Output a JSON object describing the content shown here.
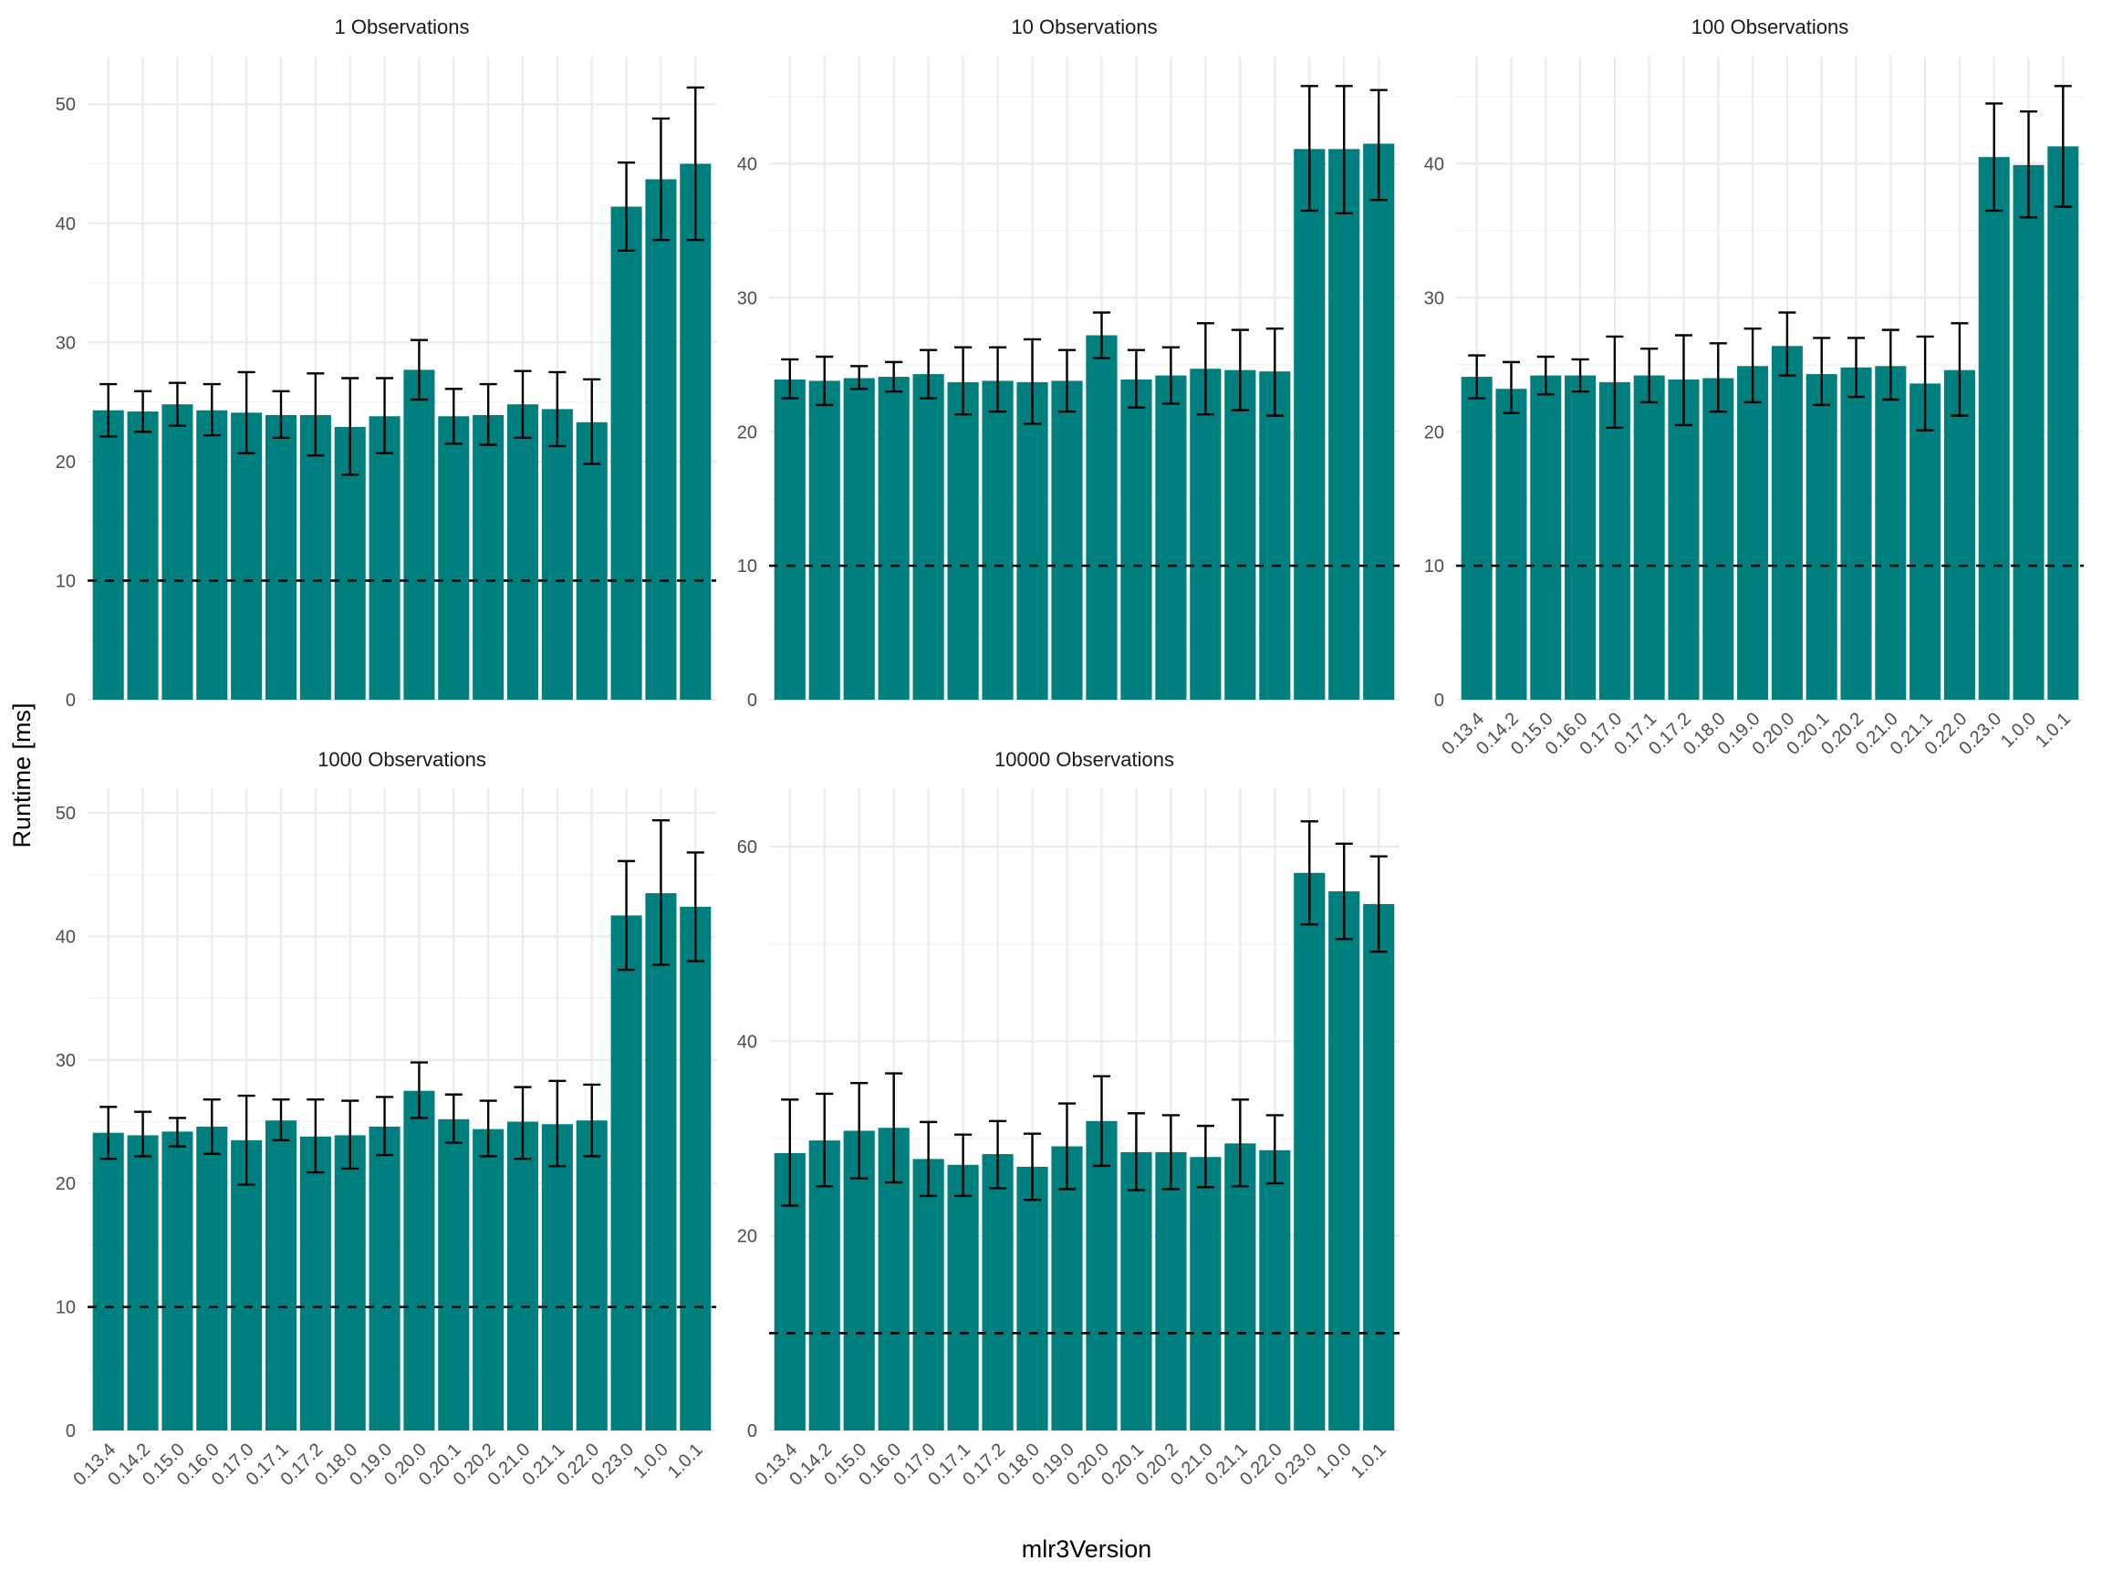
{
  "axis": {
    "xlabel": "mlr3Version",
    "ylabel": "Runtime [ms]"
  },
  "style": {
    "bar_color": "#007f7f",
    "grid_major_color": "#ebebeb",
    "grid_minor_color": "#f5f5f5",
    "error_bar_color": "#000000",
    "reference_line_color": "#000000",
    "reference_line_style": "dashed"
  },
  "chart_data": [
    {
      "type": "bar",
      "title": "1 Observations",
      "categories": [
        "0.13.4",
        "0.14.2",
        "0.15.0",
        "0.16.0",
        "0.17.0",
        "0.17.1",
        "0.17.2",
        "0.18.0",
        "0.19.0",
        "0.20.0",
        "0.20.1",
        "0.20.2",
        "0.21.0",
        "0.21.1",
        "0.22.0",
        "0.23.0",
        "1.0.0",
        "1.0.1"
      ],
      "values": [
        24.3,
        24.2,
        24.8,
        24.3,
        24.1,
        23.9,
        23.9,
        22.9,
        23.8,
        27.7,
        23.8,
        23.9,
        24.8,
        24.4,
        23.3,
        41.4,
        43.7,
        45.0
      ],
      "err_low": [
        22.1,
        22.5,
        23.0,
        22.2,
        20.7,
        22.0,
        20.5,
        18.9,
        20.7,
        25.2,
        21.5,
        21.4,
        22.0,
        21.3,
        19.8,
        37.7,
        38.6,
        38.6
      ],
      "err_high": [
        26.5,
        25.9,
        26.6,
        26.5,
        27.5,
        25.9,
        27.4,
        27.0,
        27.0,
        30.2,
        26.1,
        26.5,
        27.6,
        27.5,
        26.9,
        45.1,
        48.8,
        51.4
      ],
      "reference_line": 10,
      "ylim": [
        0,
        54
      ],
      "yticks": [
        0,
        10,
        20,
        30,
        40,
        50
      ],
      "show_x_ticks": false
    },
    {
      "type": "bar",
      "title": "10 Observations",
      "categories": [
        "0.13.4",
        "0.14.2",
        "0.15.0",
        "0.16.0",
        "0.17.0",
        "0.17.1",
        "0.17.2",
        "0.18.0",
        "0.19.0",
        "0.20.0",
        "0.20.1",
        "0.20.2",
        "0.21.0",
        "0.21.1",
        "0.22.0",
        "0.23.0",
        "1.0.0",
        "1.0.1"
      ],
      "values": [
        23.9,
        23.8,
        24.0,
        24.1,
        24.3,
        23.7,
        23.8,
        23.7,
        23.8,
        27.2,
        23.9,
        24.2,
        24.7,
        24.6,
        24.5,
        41.1,
        41.1,
        41.5
      ],
      "err_low": [
        22.5,
        22.0,
        23.2,
        23.0,
        22.5,
        21.3,
        21.5,
        20.6,
        21.5,
        25.5,
        21.8,
        22.1,
        21.3,
        21.6,
        21.2,
        36.5,
        36.3,
        37.3
      ],
      "err_high": [
        25.4,
        25.6,
        24.9,
        25.2,
        26.1,
        26.3,
        26.3,
        26.9,
        26.1,
        28.9,
        26.1,
        26.3,
        28.1,
        27.6,
        27.7,
        45.8,
        45.8,
        45.5
      ],
      "reference_line": 10,
      "ylim": [
        0,
        48
      ],
      "yticks": [
        0,
        10,
        20,
        30,
        40
      ],
      "show_x_ticks": false
    },
    {
      "type": "bar",
      "title": "100 Observations",
      "categories": [
        "0.13.4",
        "0.14.2",
        "0.15.0",
        "0.16.0",
        "0.17.0",
        "0.17.1",
        "0.17.2",
        "0.18.0",
        "0.19.0",
        "0.20.0",
        "0.20.1",
        "0.20.2",
        "0.21.0",
        "0.21.1",
        "0.22.0",
        "0.23.0",
        "1.0.0",
        "1.0.1"
      ],
      "values": [
        24.1,
        23.2,
        24.2,
        24.2,
        23.7,
        24.2,
        23.9,
        24.0,
        24.9,
        26.4,
        24.3,
        24.8,
        24.9,
        23.6,
        24.6,
        40.5,
        39.9,
        41.3
      ],
      "err_low": [
        22.5,
        21.4,
        22.8,
        23.0,
        20.3,
        22.2,
        20.5,
        21.5,
        22.2,
        24.2,
        22.0,
        22.6,
        22.4,
        20.1,
        21.2,
        36.5,
        36.0,
        36.8
      ],
      "err_high": [
        25.7,
        25.2,
        25.6,
        25.4,
        27.1,
        26.2,
        27.2,
        26.6,
        27.7,
        28.9,
        27.0,
        27.0,
        27.6,
        27.1,
        28.1,
        44.5,
        43.9,
        45.8
      ],
      "reference_line": 10,
      "ylim": [
        0,
        48
      ],
      "yticks": [
        0,
        10,
        20,
        30,
        40
      ],
      "show_x_ticks": true
    },
    {
      "type": "bar",
      "title": "1000 Observations",
      "categories": [
        "0.13.4",
        "0.14.2",
        "0.15.0",
        "0.16.0",
        "0.17.0",
        "0.17.1",
        "0.17.2",
        "0.18.0",
        "0.19.0",
        "0.20.0",
        "0.20.1",
        "0.20.2",
        "0.21.0",
        "0.21.1",
        "0.22.0",
        "0.23.0",
        "1.0.0",
        "1.0.1"
      ],
      "values": [
        24.1,
        23.9,
        24.2,
        24.6,
        23.5,
        25.1,
        23.8,
        23.9,
        24.6,
        27.5,
        25.2,
        24.4,
        25.0,
        24.8,
        25.1,
        41.7,
        43.5,
        42.4
      ],
      "err_low": [
        22.0,
        22.2,
        23.0,
        22.4,
        19.9,
        23.5,
        20.9,
        21.2,
        22.3,
        25.3,
        23.3,
        22.2,
        22.0,
        21.4,
        22.2,
        37.3,
        37.7,
        38.0
      ],
      "err_high": [
        26.2,
        25.8,
        25.3,
        26.8,
        27.1,
        26.8,
        26.8,
        26.7,
        27.0,
        29.8,
        27.2,
        26.7,
        27.8,
        28.3,
        28.0,
        46.1,
        49.4,
        46.8
      ],
      "reference_line": 10,
      "ylim": [
        0,
        52
      ],
      "yticks": [
        0,
        10,
        20,
        30,
        40,
        50
      ],
      "show_x_ticks": true
    },
    {
      "type": "bar",
      "title": "10000 Observations",
      "categories": [
        "0.13.4",
        "0.14.2",
        "0.15.0",
        "0.16.0",
        "0.17.0",
        "0.17.1",
        "0.17.2",
        "0.18.0",
        "0.19.0",
        "0.20.0",
        "0.20.1",
        "0.20.2",
        "0.21.0",
        "0.21.1",
        "0.22.0",
        "0.23.0",
        "1.0.0",
        "1.0.1"
      ],
      "values": [
        28.5,
        29.8,
        30.8,
        31.1,
        27.9,
        27.3,
        28.4,
        27.1,
        29.2,
        31.8,
        28.6,
        28.6,
        28.1,
        29.5,
        28.8,
        57.3,
        55.4,
        54.1
      ],
      "err_low": [
        23.1,
        25.1,
        25.9,
        25.5,
        24.1,
        24.1,
        24.9,
        23.7,
        24.8,
        27.2,
        24.7,
        24.8,
        25.0,
        25.1,
        25.4,
        52.0,
        50.5,
        49.2
      ],
      "err_high": [
        34.0,
        34.6,
        35.7,
        36.7,
        31.7,
        30.4,
        31.8,
        30.5,
        33.6,
        36.4,
        32.6,
        32.4,
        31.3,
        34.0,
        32.4,
        62.6,
        60.3,
        59.0
      ],
      "reference_line": 10,
      "ylim": [
        0,
        66
      ],
      "yticks": [
        0,
        20,
        40,
        60
      ],
      "show_x_ticks": true
    }
  ]
}
